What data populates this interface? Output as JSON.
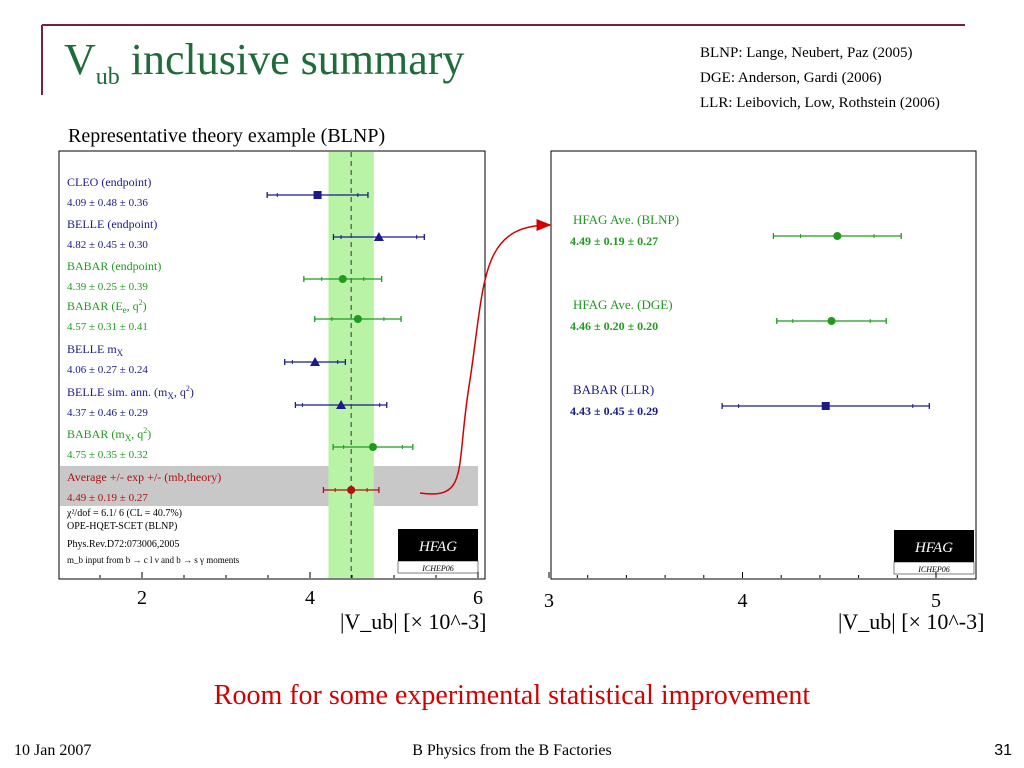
{
  "slide": {
    "title_main": "V",
    "title_sub": "ub",
    "title_rest": " inclusive summary",
    "refs": [
      "BLNP: Lange, Neubert, Paz (2005)",
      "DGE: Anderson, Gardi (2006)",
      "LLR: Leibovich, Low, Rothstein (2006)"
    ],
    "subtitle": "Representative theory example (BLNP)",
    "bottom_message": "Room for some experimental statistical improvement",
    "footer_date": "10 Jan 2007",
    "footer_title": "B Physics from the B Factories",
    "page_number": "31",
    "colors": {
      "title": "#1f6b3a",
      "blue": "#1a1a8c",
      "green": "#1f9a1f",
      "red": "#b01010",
      "band": "#b9f3a5",
      "avg_row": "#c8c8c8",
      "message": "#d40000"
    }
  },
  "left_plot": {
    "entries": [
      {
        "label": "CLEO (endpoint)",
        "value_text": "4.09 ± 0.48 ± 0.36",
        "color": "#1a1a8c",
        "marker": "square"
      },
      {
        "label": "BELLE (endpoint)",
        "value_text": "4.82 ± 0.45 ± 0.30",
        "color": "#1a1a8c",
        "marker": "triangle"
      },
      {
        "label": "BABAR (endpoint)",
        "value_text": "4.39 ± 0.25 ± 0.39",
        "color": "#1f9a1f",
        "marker": "circle"
      },
      {
        "label": "BABAR (E",
        "label_sub": "e",
        ", q": "",
        "label_tail": ", q",
        "label_sup": "2",
        "label_end": ")",
        "value_text": "4.57 ± 0.31 ± 0.41",
        "color": "#1f9a1f",
        "marker": "circle"
      },
      {
        "label": "BELLE m",
        "label_sub": "X",
        "value_text": "4.06 ± 0.27 ± 0.24",
        "color": "#1a1a8c",
        "marker": "triangle"
      },
      {
        "label": "BELLE sim. ann. (m",
        "label_sub": "X",
        "label_tail": ", q",
        "label_sup": "2",
        "label_end": ")",
        "value_text": "4.37 ± 0.46 ± 0.29",
        "color": "#1a1a8c",
        "marker": "triangle"
      },
      {
        "label": "BABAR (m",
        "label_sub": "X",
        "label_tail": ", q",
        "label_sup": "2",
        "label_end": ")",
        "value_text": "4.75 ± 0.35 ± 0.32",
        "color": "#1f9a1f",
        "marker": "circle"
      },
      {
        "label": "Average +/- exp +/- (mb,theory)",
        "value_text": "4.49 ± 0.19 ± 0.27",
        "color": "#b01010",
        "marker": "circle"
      }
    ],
    "footnotes": [
      "χ²/dof = 6.1/ 6 (CL = 40.7%)",
      "OPE-HQET-SCET (BLNP)",
      "Phys.Rev.D72:073006,2005",
      "m_b input from b → c l ν and b → s γ moments"
    ],
    "badge": "HFAG",
    "badge_sub": "ICHEP06",
    "axis_label": "|V_ub|  [× 10^-3]",
    "ticks": [
      "2",
      "4",
      "6"
    ]
  },
  "right_plot": {
    "entries": [
      {
        "label": "HFAG Ave. (BLNP)",
        "value_text": "4.49 ± 0.19 ± 0.27",
        "color": "#1f9a1f",
        "marker": "circle"
      },
      {
        "label": "HFAG Ave. (DGE)",
        "value_text": "4.46 ± 0.20 ± 0.20",
        "color": "#1f9a1f",
        "marker": "circle"
      },
      {
        "label": "BABAR (LLR)",
        "value_text": "4.43 ± 0.45 ± 0.29",
        "color": "#1a1a8c",
        "marker": "square"
      }
    ],
    "badge": "HFAG",
    "badge_sub": "ICHEP06",
    "axis_label": "|V_ub|  [× 10^-3]",
    "ticks": [
      "3",
      "4",
      "5"
    ]
  },
  "chart_data": [
    {
      "type": "scatter",
      "xlabel": "|Vub| [× 10^-3]",
      "xlim": [
        1.0,
        6.0
      ],
      "band": [
        4.22,
        4.76
      ],
      "reference_line": 4.49,
      "series": [
        {
          "name": "CLEO (endpoint)",
          "x": 4.09,
          "stat": 0.48,
          "syst": 0.36
        },
        {
          "name": "BELLE (endpoint)",
          "x": 4.82,
          "stat": 0.45,
          "syst": 0.3
        },
        {
          "name": "BABAR (endpoint)",
          "x": 4.39,
          "stat": 0.25,
          "syst": 0.39
        },
        {
          "name": "BABAR (Ee, q2)",
          "x": 4.57,
          "stat": 0.31,
          "syst": 0.41
        },
        {
          "name": "BELLE mX",
          "x": 4.06,
          "stat": 0.27,
          "syst": 0.24
        },
        {
          "name": "BELLE sim. ann. (mX, q2)",
          "x": 4.37,
          "stat": 0.46,
          "syst": 0.29
        },
        {
          "name": "BABAR (mX, q2)",
          "x": 4.75,
          "stat": 0.35,
          "syst": 0.32
        },
        {
          "name": "Average +/- exp +/- (mb,theory)",
          "x": 4.49,
          "stat": 0.19,
          "syst": 0.27
        }
      ]
    },
    {
      "type": "scatter",
      "xlabel": "|Vub| [× 10^-3]",
      "xlim": [
        3.0,
        5.2
      ],
      "series": [
        {
          "name": "HFAG Ave. (BLNP)",
          "x": 4.49,
          "stat": 0.19,
          "syst": 0.27
        },
        {
          "name": "HFAG Ave. (DGE)",
          "x": 4.46,
          "stat": 0.2,
          "syst": 0.2
        },
        {
          "name": "BABAR (LLR)",
          "x": 4.43,
          "stat": 0.45,
          "syst": 0.29
        }
      ]
    }
  ]
}
